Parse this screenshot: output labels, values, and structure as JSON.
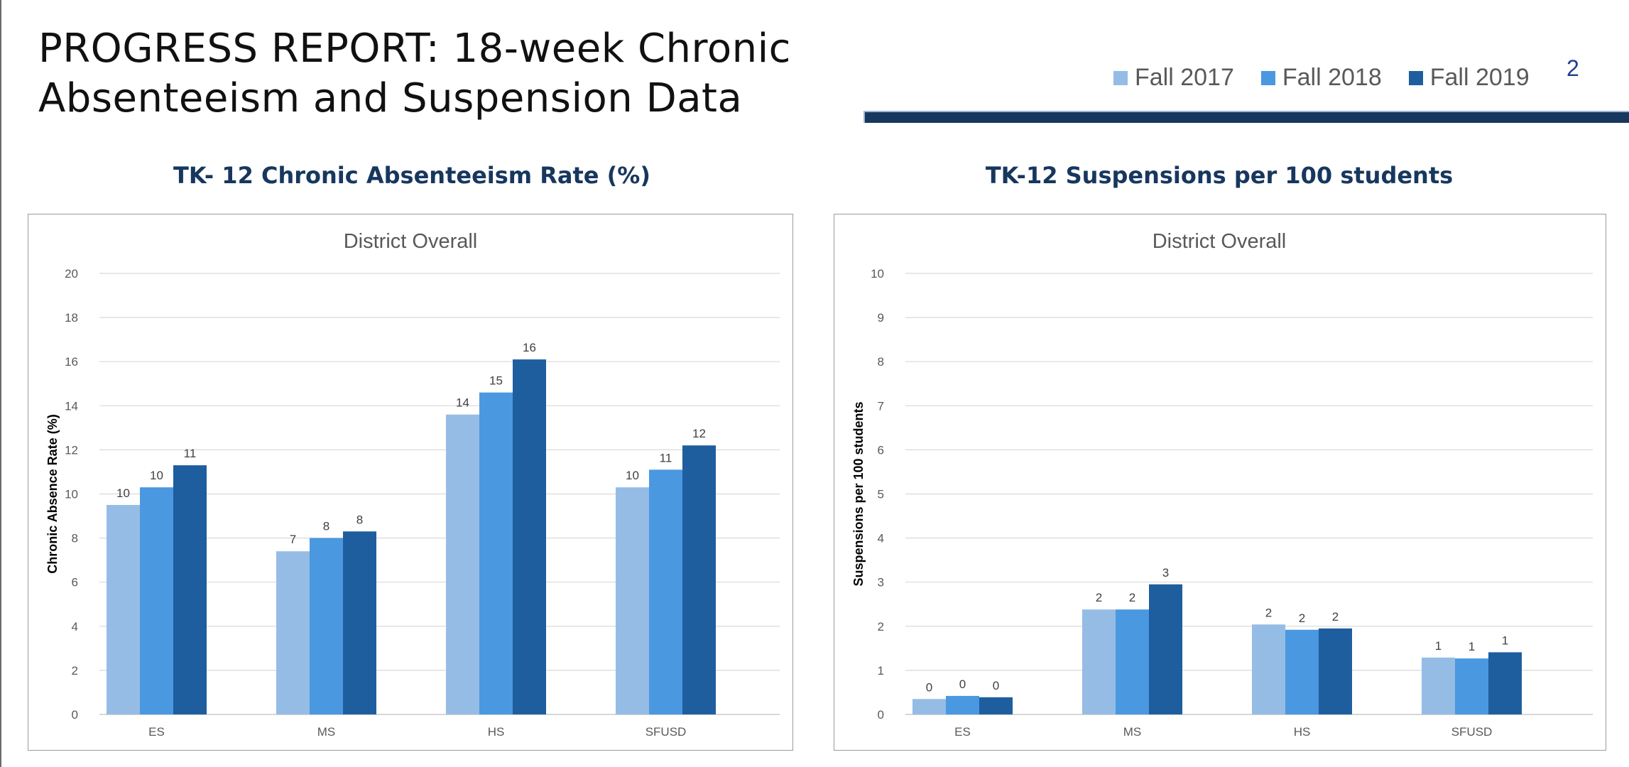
{
  "slide": {
    "title": "PROGRESS REPORT:  18-week Chronic Absenteeism and Suspension Data",
    "page_number": "2"
  },
  "legend": {
    "items": [
      {
        "label": "Fall 2017",
        "color": "#95bce5"
      },
      {
        "label": "Fall 2018",
        "color": "#4a98e0"
      },
      {
        "label": "Fall 2019",
        "color": "#1f5e9e"
      }
    ]
  },
  "chart_data": [
    {
      "id": "absence",
      "type": "bar",
      "heading": "TK- 12 Chronic Absenteeism Rate (%)",
      "title": "District Overall",
      "ylabel": "Chronic Absence Rate (%)",
      "xlabel": "",
      "ylim": [
        0,
        20
      ],
      "yticks": [
        0,
        2,
        4,
        6,
        8,
        10,
        12,
        14,
        16,
        18,
        20
      ],
      "grid": true,
      "categories": [
        "ES",
        "MS",
        "HS",
        "SFUSD"
      ],
      "series": [
        {
          "name": "Fall 2017",
          "values": [
            9.5,
            7.4,
            13.6,
            10.3
          ],
          "labels": [
            "10",
            "7",
            "14",
            "10"
          ]
        },
        {
          "name": "Fall 2018",
          "values": [
            10.3,
            8.0,
            14.6,
            11.1
          ],
          "labels": [
            "10",
            "8",
            "15",
            "11"
          ]
        },
        {
          "name": "Fall 2019",
          "values": [
            11.3,
            8.3,
            16.1,
            12.2
          ],
          "labels": [
            "11",
            "8",
            "16",
            "12"
          ]
        }
      ]
    },
    {
      "id": "suspension",
      "type": "bar",
      "heading": "TK-12 Suspensions per 100 students",
      "title": "District Overall",
      "ylabel": "Suspensions per 100 students",
      "xlabel": "",
      "ylim": [
        0,
        10
      ],
      "yticks": [
        0,
        1,
        2,
        3,
        4,
        5,
        6,
        7,
        8,
        9,
        10
      ],
      "grid": true,
      "categories": [
        "ES",
        "MS",
        "HS",
        "SFUSD"
      ],
      "series": [
        {
          "name": "Fall 2017",
          "values": [
            0.35,
            2.38,
            2.04,
            1.29
          ],
          "labels": [
            "0",
            "2",
            "2",
            "1"
          ]
        },
        {
          "name": "Fall 2018",
          "values": [
            0.42,
            2.38,
            1.92,
            1.27
          ],
          "labels": [
            "0",
            "2",
            "2",
            "1"
          ]
        },
        {
          "name": "Fall 2019",
          "values": [
            0.39,
            2.95,
            1.95,
            1.41
          ],
          "labels": [
            "0",
            "3",
            "2",
            "1"
          ]
        }
      ]
    }
  ]
}
